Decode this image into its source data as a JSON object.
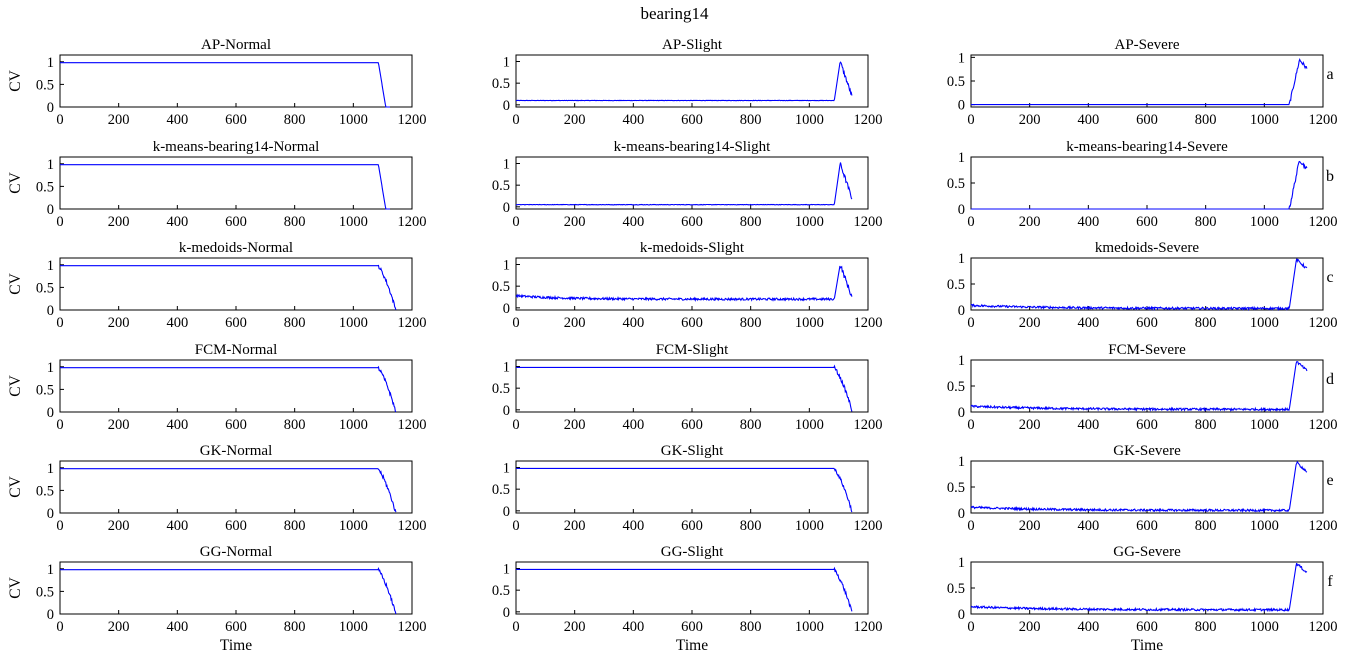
{
  "figure_title": "bearing14",
  "chart_data": {
    "type": "line",
    "rows": 6,
    "cols": 3,
    "x_ticks": [
      0,
      200,
      400,
      600,
      800,
      1000,
      1200
    ],
    "xlim": [
      0,
      1200
    ],
    "ylabel": "CV",
    "xlabel": "Time",
    "row_labels": [
      "a",
      "b",
      "c",
      "d",
      "e",
      "f"
    ],
    "line_color": "#0000ff",
    "panels": [
      {
        "title": "AP-Normal",
        "yticks": [
          "0",
          "0.5",
          "1"
        ],
        "ylim": [
          0,
          1.15
        ],
        "profile": "normal",
        "baseline": 0.98,
        "end": 1125
      },
      {
        "title": "AP-Slight",
        "yticks": [
          "0",
          "0.5",
          "1"
        ],
        "ylim": [
          -0.05,
          1.15
        ],
        "profile": "spike",
        "baseline": 0.1,
        "end": 1145
      },
      {
        "title": "AP-Severe",
        "yticks": [
          "0",
          "0.5",
          "1"
        ],
        "ylim": [
          -0.05,
          1.05
        ],
        "profile": "severe",
        "baseline": 0.0,
        "end": 1145
      },
      {
        "title": "k-means-bearing14-Normal",
        "yticks": [
          "0",
          "0.5",
          "1"
        ],
        "ylim": [
          0,
          1.15
        ],
        "profile": "normal",
        "baseline": 0.98,
        "end": 1125
      },
      {
        "title": "k-means-bearing14-Slight",
        "yticks": [
          "0",
          "0.5",
          "1"
        ],
        "ylim": [
          -0.05,
          1.15
        ],
        "profile": "spike",
        "baseline": 0.05,
        "end": 1145
      },
      {
        "title": "k-means-bearing14-Severe",
        "yticks": [
          "0",
          "0.5",
          "1"
        ],
        "ylim": [
          0,
          1.0
        ],
        "profile": "severe",
        "baseline": 0.0,
        "end": 1145
      },
      {
        "title": "k-medoids-Normal",
        "yticks": [
          "0",
          "0.5",
          "1"
        ],
        "ylim": [
          0,
          1.15
        ],
        "profile": "decay",
        "baseline": 0.98,
        "end": 1145
      },
      {
        "title": "k-medoids-Slight",
        "yticks": [
          "0",
          "0.5",
          "1"
        ],
        "ylim": [
          -0.05,
          1.15
        ],
        "profile": "spike-noisy",
        "baseline": 0.2,
        "end": 1145
      },
      {
        "title": "kmedoids-Severe",
        "yticks": [
          "0",
          "0.5",
          "1"
        ],
        "ylim": [
          0,
          1.0
        ],
        "profile": "severe-noisy",
        "baseline": 0.03,
        "end": 1145
      },
      {
        "title": "FCM-Normal",
        "yticks": [
          "0",
          "0.5",
          "1"
        ],
        "ylim": [
          0,
          1.15
        ],
        "profile": "decay",
        "baseline": 0.98,
        "end": 1145
      },
      {
        "title": "FCM-Slight",
        "yticks": [
          "0",
          "0.5",
          "1"
        ],
        "ylim": [
          -0.05,
          1.15
        ],
        "profile": "decay",
        "baseline": 0.98,
        "end": 1145
      },
      {
        "title": "FCM-Severe",
        "yticks": [
          "0",
          "0.5",
          "1"
        ],
        "ylim": [
          0,
          1.0
        ],
        "profile": "severe-noisy",
        "baseline": 0.05,
        "end": 1145
      },
      {
        "title": "GK-Normal",
        "yticks": [
          "0",
          "0.5",
          "1"
        ],
        "ylim": [
          0,
          1.15
        ],
        "profile": "decay",
        "baseline": 0.98,
        "end": 1145
      },
      {
        "title": "GK-Slight",
        "yticks": [
          "0",
          "0.5",
          "1"
        ],
        "ylim": [
          -0.05,
          1.15
        ],
        "profile": "decay",
        "baseline": 0.98,
        "end": 1145
      },
      {
        "title": "GK-Severe",
        "yticks": [
          "0",
          "0.5",
          "1"
        ],
        "ylim": [
          0,
          1.0
        ],
        "profile": "severe-noisy",
        "baseline": 0.05,
        "end": 1145
      },
      {
        "title": "GG-Normal",
        "yticks": [
          "0",
          "0.5",
          "1"
        ],
        "ylim": [
          0,
          1.15
        ],
        "profile": "decay",
        "baseline": 0.98,
        "end": 1145
      },
      {
        "title": "GG-Slight",
        "yticks": [
          "0",
          "0.5",
          "1"
        ],
        "ylim": [
          -0.05,
          1.15
        ],
        "profile": "decay",
        "baseline": 0.98,
        "end": 1145
      },
      {
        "title": "GG-Severe",
        "yticks": [
          "0",
          "0.5",
          "1"
        ],
        "ylim": [
          0,
          1.0
        ],
        "profile": "severe-noisy",
        "baseline": 0.08,
        "end": 1145
      }
    ]
  }
}
